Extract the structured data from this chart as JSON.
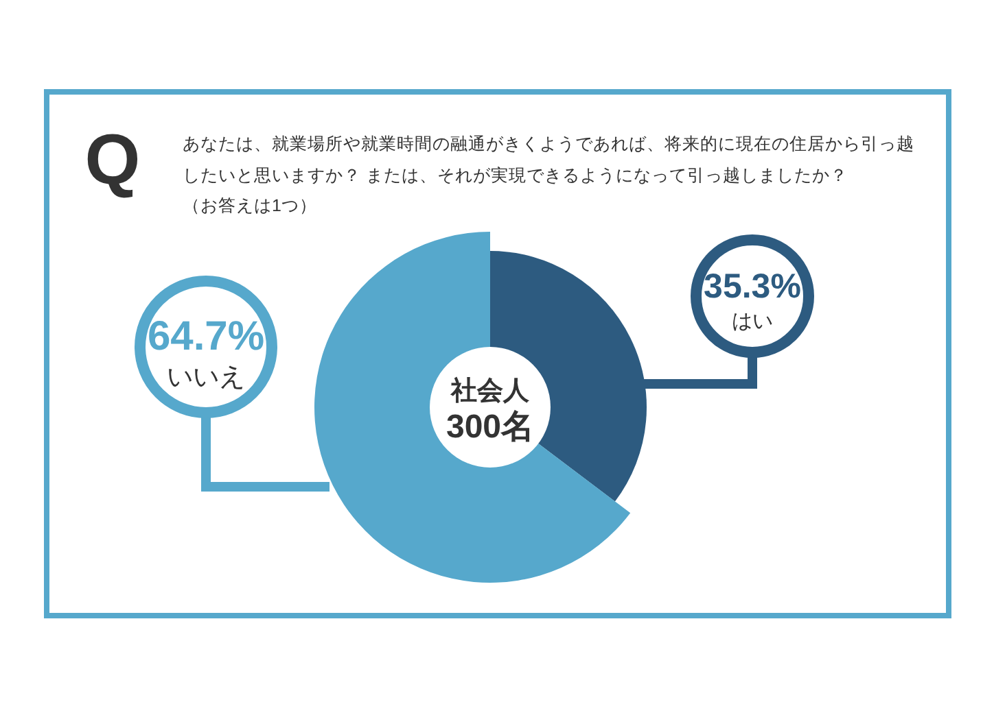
{
  "chart_data": {
    "type": "donut",
    "title": "あなたは、就業場所や就業時間の融通がきくようであれば、将来的に現在の住居から引っ越したいと思いますか？ または、それが実現できるようになって引っ越しましたか？",
    "subtitle": "（お答えは1つ）",
    "categories": [
      "はい",
      "いいえ"
    ],
    "values": [
      35.3,
      64.7
    ],
    "colors": [
      "#2d5b80",
      "#56a8cc"
    ],
    "value_labels": [
      "35.3%",
      "64.7%"
    ],
    "annotations": [
      "Q",
      "社会人",
      "300名"
    ]
  }
}
